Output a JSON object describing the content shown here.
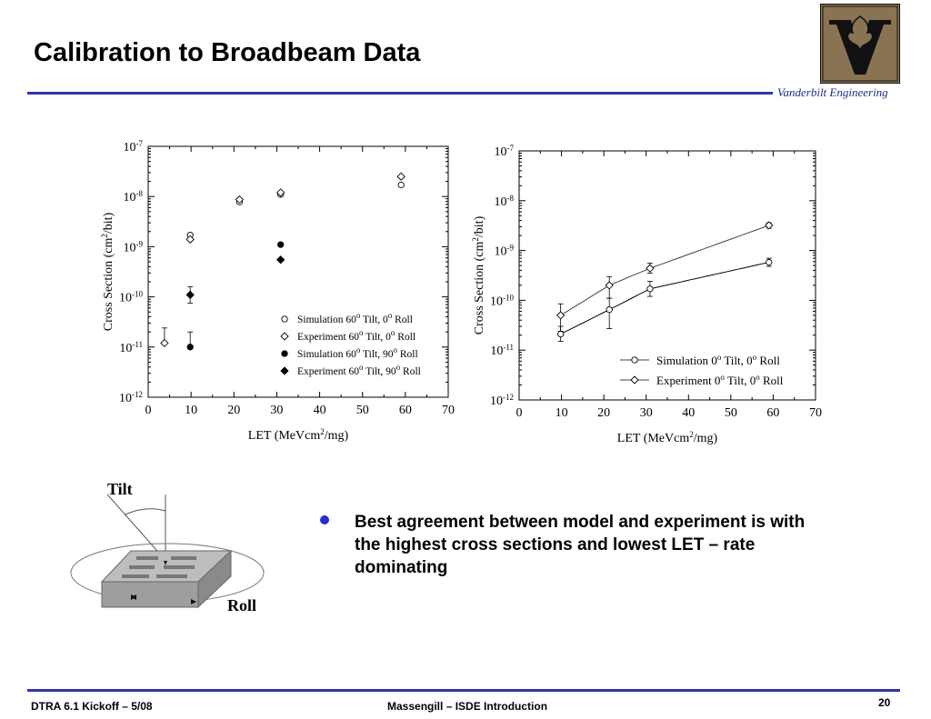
{
  "slide": {
    "title": "Calibration to Broadbeam Data",
    "brand": "Vanderbilt Engineering",
    "bullet": "Best agreement between model and experiment is with the highest cross sections and lowest LET – rate dominating",
    "footer_left": "DTRA 6.1 Kickoff – 5/08",
    "footer_center": "Massengill – ISDE Introduction",
    "page_number": "20",
    "accent_color": "#3333a8",
    "logo_colors": {
      "background": "#8a7353",
      "letter": "#111111"
    }
  },
  "diagram": {
    "tilt_label": "Tilt",
    "roll_label": "Roll"
  },
  "chart_data": [
    {
      "type": "scatter",
      "y_scale": "log",
      "xlabel": "LET (MeVcm2/mg)",
      "ylabel": "Cross Section (cm2/bit)",
      "xlim": [
        0,
        70
      ],
      "ylim": [
        1e-12,
        1e-07
      ],
      "x_ticks": [
        "0",
        "10",
        "20",
        "30",
        "40",
        "50",
        "60",
        "70"
      ],
      "y_ticks": [
        -12,
        -11,
        -10,
        -9,
        -8,
        -7
      ],
      "legend_position": "bottom-right",
      "series": [
        {
          "name": "Simulation 60o Tilt, 0o Roll",
          "marker": "open-circle",
          "points": [
            {
              "x": 9.8,
              "y": 1.7e-09
            },
            {
              "x": 21.3,
              "y": 7.8e-09
            },
            {
              "x": 30.9,
              "y": 1.1e-08
            },
            {
              "x": 59,
              "y": 1.7e-08
            }
          ]
        },
        {
          "name": "Experiment 60o Tilt, 0o Roll",
          "marker": "open-diamond",
          "points": [
            {
              "x": 3.8,
              "y": 1.2e-11,
              "err_hi": 2.4e-11
            },
            {
              "x": 9.8,
              "y": 1.4e-09
            },
            {
              "x": 21.3,
              "y": 8.7e-09
            },
            {
              "x": 30.9,
              "y": 1.2e-08
            },
            {
              "x": 59,
              "y": 2.5e-08
            }
          ]
        },
        {
          "name": "Simulation 60o Tilt, 90o Roll",
          "marker": "filled-circle",
          "points": [
            {
              "x": 9.8,
              "y": 1e-11,
              "err_hi": 2e-11
            },
            {
              "x": 30.9,
              "y": 1.1e-09
            }
          ]
        },
        {
          "name": "Experiment 60o Tilt, 90o Roll",
          "marker": "filled-diamond",
          "points": [
            {
              "x": 9.8,
              "y": 1.1e-10,
              "err_lo": 7.5e-11,
              "err_hi": 1.6e-10
            },
            {
              "x": 30.9,
              "y": 5.5e-10
            }
          ]
        }
      ]
    },
    {
      "type": "line",
      "y_scale": "log",
      "xlabel": "LET (MeVcm2/mg)",
      "ylabel": "Cross Section (cm2/bit)",
      "xlim": [
        0,
        70
      ],
      "ylim": [
        1e-12,
        1e-07
      ],
      "x_ticks": [
        "0",
        "10",
        "20",
        "30",
        "40",
        "50",
        "60",
        "70"
      ],
      "y_ticks": [
        -12,
        -11,
        -10,
        -9,
        -8,
        -7
      ],
      "legend_position": "bottom-right",
      "series": [
        {
          "name": "Simulation 0o Tilt, 0o Roll",
          "marker": "open-circle",
          "points": [
            {
              "x": 9.8,
              "y": 2.1e-11,
              "err_lo": 1.5e-11,
              "err_hi": 3e-11
            },
            {
              "x": 21.3,
              "y": 6.5e-11,
              "err_lo": 2.7e-11,
              "err_hi": 1.1e-10
            },
            {
              "x": 30.9,
              "y": 1.7e-10,
              "err_lo": 1.2e-10,
              "err_hi": 2.4e-10
            },
            {
              "x": 59,
              "y": 5.8e-10,
              "err_lo": 4.8e-10,
              "err_hi": 7e-10
            }
          ]
        },
        {
          "name": "Experiment 0o Tilt, 0o Roll",
          "marker": "open-diamond",
          "points": [
            {
              "x": 9.8,
              "y": 5e-11,
              "err_lo": 2.4e-11,
              "err_hi": 8.5e-11
            },
            {
              "x": 21.3,
              "y": 2e-10,
              "err_lo": 1.1e-10,
              "err_hi": 3e-10
            },
            {
              "x": 30.9,
              "y": 4.4e-10,
              "err_lo": 3.5e-10,
              "err_hi": 5.6e-10
            },
            {
              "x": 59,
              "y": 3.2e-09,
              "err_lo": 2.8e-09,
              "err_hi": 3.6e-09
            }
          ]
        }
      ]
    }
  ]
}
